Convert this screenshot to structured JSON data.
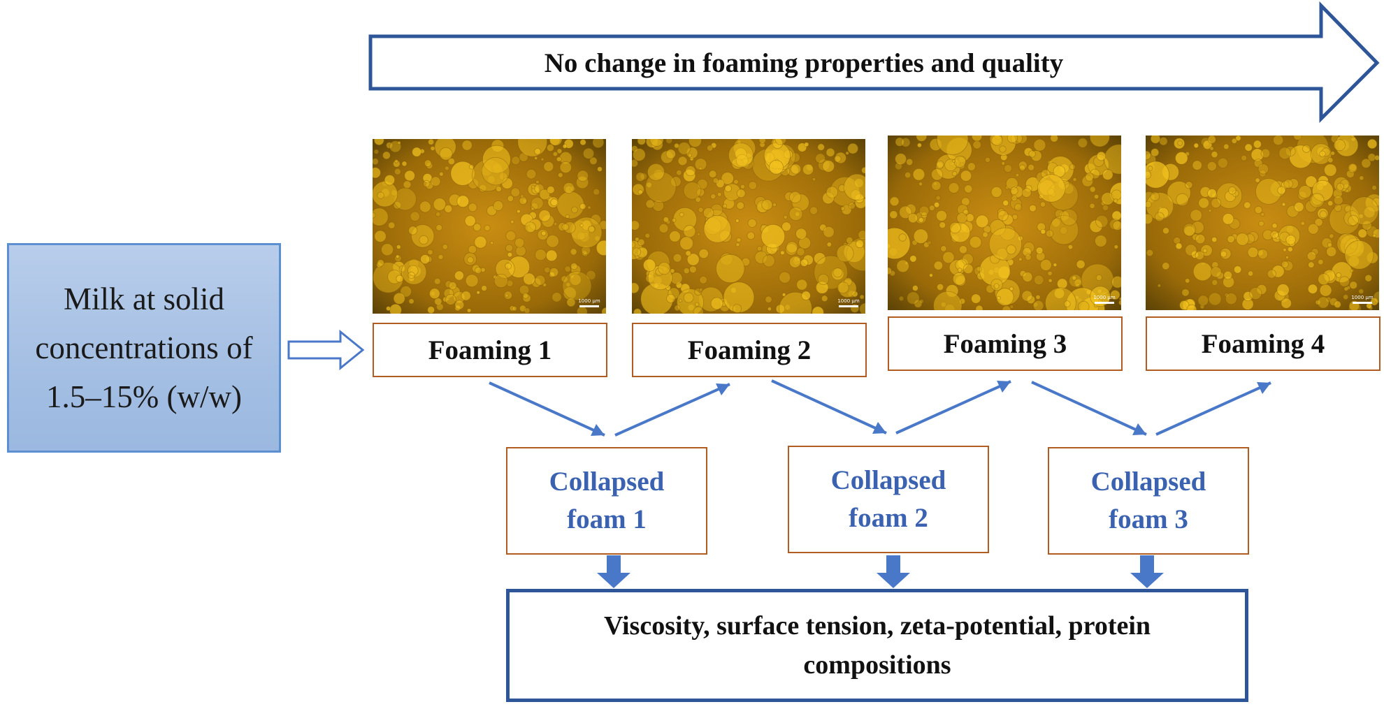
{
  "banner": {
    "text": "No change in foaming properties and quality"
  },
  "start": {
    "line1": "Milk at solid",
    "line2": "concentrations of",
    "line3": "1.5–15% (w/w)"
  },
  "foamings": [
    {
      "label": "Foaming 1",
      "scale": "1000 μm"
    },
    {
      "label": "Foaming 2",
      "scale": "1000 μm"
    },
    {
      "label": "Foaming 3",
      "scale": "1000 μm"
    },
    {
      "label": "Foaming 4",
      "scale": "1000 μm"
    }
  ],
  "collapsed": [
    {
      "line1": "Collapsed",
      "line2": "foam 1"
    },
    {
      "line1": "Collapsed",
      "line2": "foam 2"
    },
    {
      "line1": "Collapsed",
      "line2": "foam 3"
    }
  ],
  "result": {
    "text": "Viscosity, surface tension, zeta-potential, protein compositions"
  },
  "colors": {
    "banner_arrow": "#2e5597",
    "flow_arrow": "#4a78c8",
    "label_border": "#b15d22",
    "collapsed_text": "#3a62b0",
    "start_fill": "#a6c0e4"
  }
}
